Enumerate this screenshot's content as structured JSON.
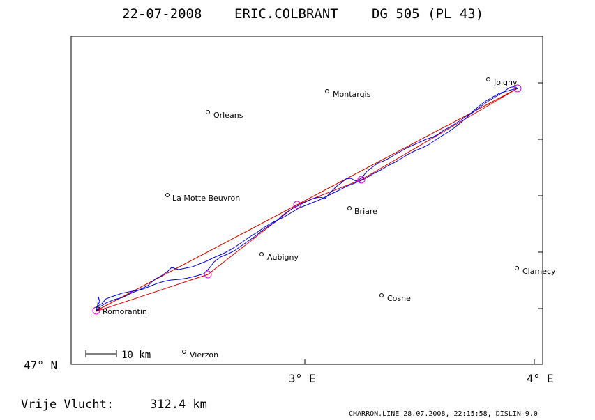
{
  "header": {
    "date": "22-07-2008",
    "pilot": "ERIC.COLBRANT",
    "glider": "DG 505 (PL 43)"
  },
  "axes": {
    "y_label": "47° N",
    "x_labels": [
      "3° E",
      "4° E"
    ]
  },
  "scale_bar": {
    "label": "10 km"
  },
  "footer": {
    "distance_label": "Vrije Vlucht:",
    "distance_value": "312.4 km",
    "credit": "CHARRON.LINE 28.07.2008, 22:15:58, DISLIN 9.0"
  },
  "towns": [
    {
      "id": "joigny",
      "name": "Joigny"
    },
    {
      "id": "montargis",
      "name": "Montargis"
    },
    {
      "id": "orleans",
      "name": "Orleans"
    },
    {
      "id": "la-motte-beuvron",
      "name": "La Motte Beuvron"
    },
    {
      "id": "briare",
      "name": "Briare"
    },
    {
      "id": "aubigny",
      "name": "Aubigny"
    },
    {
      "id": "clamecy",
      "name": "Clamecy"
    },
    {
      "id": "cosne",
      "name": "Cosne"
    },
    {
      "id": "romorantin",
      "name": "Romorantin"
    },
    {
      "id": "vierzon",
      "name": "Vierzon"
    }
  ],
  "colors": {
    "track": "#0000e0",
    "task": "#e00000",
    "straight": "#a0a000",
    "turnpoint": "#e000e0",
    "frame": "#000000"
  }
}
